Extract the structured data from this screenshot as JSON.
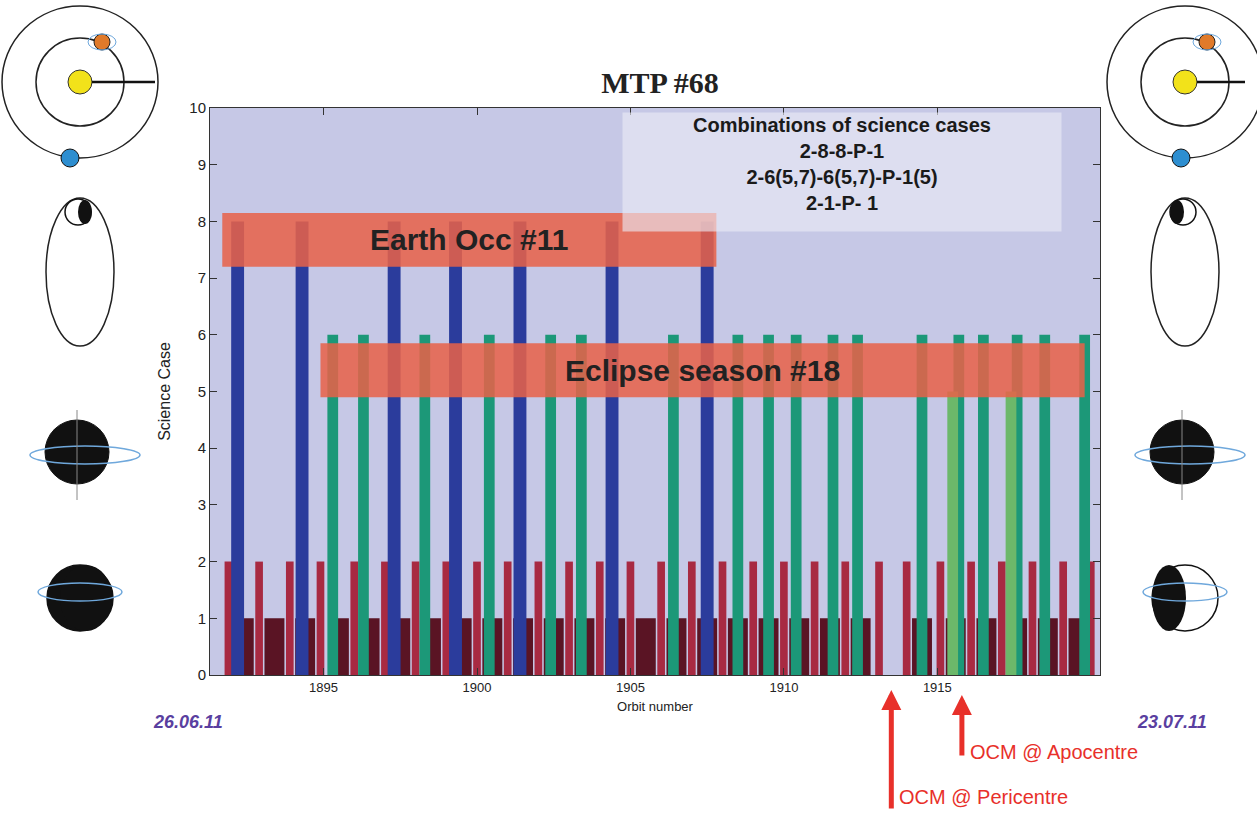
{
  "chart_data": {
    "type": "bar",
    "title": "MTP #68",
    "x_label": "Orbit number",
    "y_label": "Science Case",
    "xlim": [
      1891.3,
      1920.3
    ],
    "xticks": [
      1895,
      1900,
      1905,
      1910,
      1915
    ],
    "ylim": [
      0,
      10
    ],
    "yticks": [
      0,
      1,
      2,
      3,
      4,
      5,
      6,
      7,
      8,
      9,
      10
    ],
    "grid": false,
    "series": [
      {
        "color": "#5a1424",
        "x": [
          1892.4,
          1893.4,
          1894.4,
          1895.5,
          1896.5,
          1897.5,
          1898.5,
          1899.5,
          1900.5,
          1901.5,
          1902.5,
          1903.5,
          1904.5,
          1905.5,
          1906.5,
          1907.5,
          1908.5,
          1909.5,
          1910.5,
          1911.5,
          1912.5,
          1914.5,
          1915.6,
          1916.6,
          1917.6,
          1918.6,
          1919.6
        ],
        "values": [
          1,
          1,
          1,
          1,
          1,
          1,
          1,
          1,
          1,
          1,
          1,
          1,
          1,
          1,
          1,
          1,
          1,
          1,
          1,
          1,
          1,
          1,
          1,
          1,
          1,
          1,
          1
        ]
      },
      {
        "color": "#a82a42",
        "x": [
          1891.9,
          1892.9,
          1893.9,
          1894.9,
          1896.0,
          1897.0,
          1898.0,
          1899.0,
          1900.0,
          1901.0,
          1902.0,
          1903.0,
          1904.0,
          1905.0,
          1906.0,
          1907.0,
          1908.0,
          1909.0,
          1910.0,
          1911.0,
          1912.0,
          1913.1,
          1914.0,
          1915.1,
          1916.1,
          1917.1,
          1918.1,
          1919.1,
          1920.0
        ],
        "values": [
          2,
          2,
          2,
          2,
          2,
          2,
          2,
          2,
          2,
          2,
          2,
          2,
          2,
          2,
          2,
          2,
          2,
          2,
          2,
          2,
          2,
          2,
          2,
          2,
          2,
          2,
          2,
          2,
          2
        ]
      },
      {
        "color": "#2b3c9c",
        "x": [
          1892.2,
          1894.3,
          1897.3,
          1899.3,
          1901.4,
          1904.4,
          1907.5
        ],
        "values": [
          8,
          8,
          8,
          8,
          8,
          8,
          8
        ]
      },
      {
        "color": "#1c9878",
        "x": [
          1895.3,
          1896.3,
          1898.3,
          1900.4,
          1902.4,
          1903.4,
          1906.4,
          1908.5,
          1909.5,
          1910.4,
          1911.6,
          1912.4,
          1914.5,
          1915.7,
          1916.5,
          1917.6,
          1918.5,
          1919.8
        ],
        "values": [
          6,
          6,
          6,
          6,
          6,
          6,
          6,
          6,
          6,
          6,
          6,
          6,
          6,
          6,
          6,
          6,
          6,
          6
        ]
      },
      {
        "color": "#6cb86a",
        "x": [
          1915.5,
          1917.4
        ],
        "values": [
          5,
          5
        ]
      }
    ],
    "bands": [
      {
        "text": "Earth Occ #11",
        "x": [
          1891.7,
          1907.8
        ],
        "y": [
          7.2,
          8.15
        ]
      },
      {
        "text": "Eclipse season #18",
        "x": [
          1894.9,
          1919.8
        ],
        "y": [
          4.9,
          5.85
        ]
      }
    ],
    "text_box": {
      "title": "Combinations of science cases",
      "lines": [
        "2-8-8-P-1",
        "2-6(5,7)-6(5,7)-P-1(5)",
        "2-1-P- 1"
      ]
    },
    "dates": {
      "start": "26.06.11",
      "end": "23.07.11"
    },
    "markers": [
      {
        "text": "OCM @ Pericentre",
        "x": 1913.5
      },
      {
        "text": "OCM @ Apocentre",
        "x": 1915.8
      }
    ]
  }
}
